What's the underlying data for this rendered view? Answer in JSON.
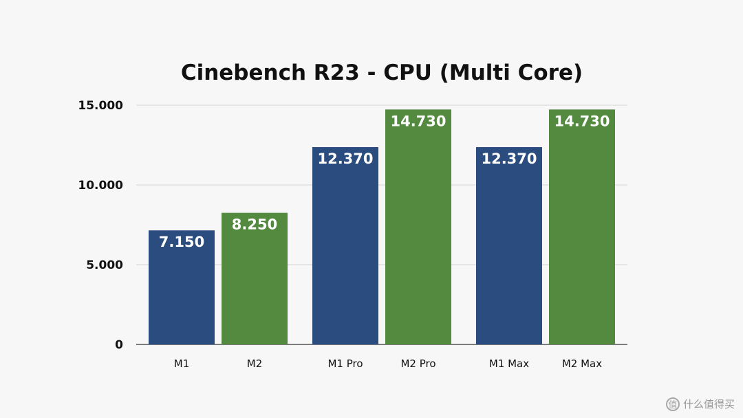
{
  "chart_data": {
    "type": "bar",
    "title": "Cinebench R23 - CPU (Multi Core)",
    "categories": [
      "M1",
      "M2",
      "M1 Pro",
      "M2 Pro",
      "M1 Max",
      "M2 Max"
    ],
    "values": [
      7150,
      8250,
      12370,
      14730,
      12370,
      14730
    ],
    "value_labels": [
      "7.150",
      "8.250",
      "12.370",
      "14.730",
      "12.370",
      "14.730"
    ],
    "bar_colors": [
      "#2b4c7e",
      "#538a3f",
      "#2b4c7e",
      "#538a3f",
      "#2b4c7e",
      "#538a3f"
    ],
    "ylim": [
      0,
      15000
    ],
    "yticks": [
      0,
      5000,
      10000,
      15000
    ],
    "ytick_labels": [
      "0",
      "5.000",
      "10.000",
      "15.000"
    ],
    "xlabel": "",
    "ylabel": "",
    "grid": true,
    "legend": "none"
  },
  "watermark": {
    "icon": "zhi-circle-icon",
    "icon_glyph": "值",
    "text": "什么值得买"
  }
}
